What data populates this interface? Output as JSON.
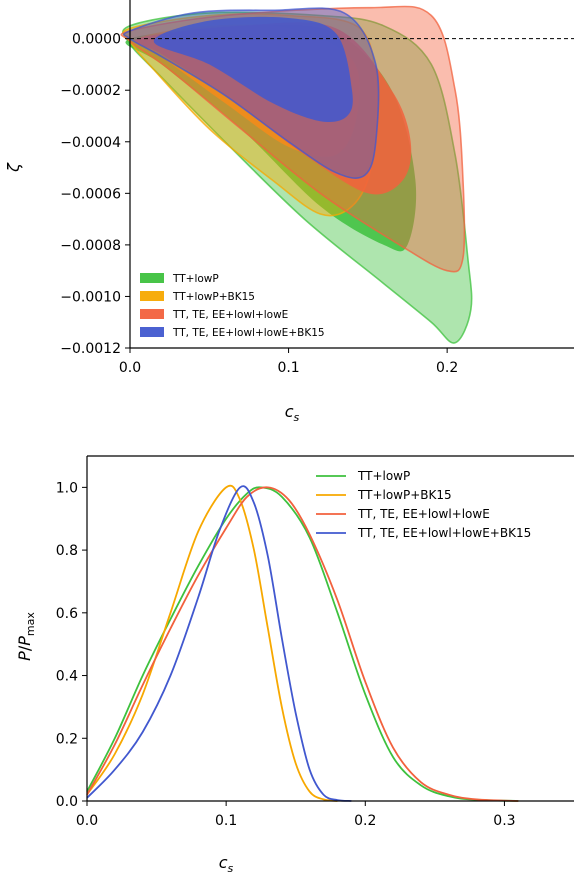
{
  "chart_data": [
    {
      "type": "contour",
      "xlabel": "c_s",
      "ylabel": "ζ",
      "xlim": [
        0.0,
        0.28
      ],
      "ylim": [
        -0.0012,
        0.00015
      ],
      "xticks": [
        0.0,
        0.1,
        0.2
      ],
      "xtick_labels": [
        "0.0",
        "0.1",
        "0.2"
      ],
      "yticks": [
        0.0,
        -0.0002,
        -0.0004,
        -0.0006,
        -0.0008,
        -0.001,
        -0.0012
      ],
      "ytick_labels": [
        "0.0000",
        "−0.0002",
        "−0.0004",
        "−0.0006",
        "−0.0008",
        "−0.0010",
        "−0.0012"
      ],
      "reference_line": {
        "y": 0.0,
        "style": "dashed"
      },
      "legend_position": "lower-left",
      "series": [
        {
          "name": "TT+lowP",
          "color": "#3ec13e",
          "outer": [
            [
              0.0,
              5e-05
            ],
            [
              0.05,
              0.0001
            ],
            [
              0.12,
              9e-05
            ],
            [
              0.16,
              5e-05
            ],
            [
              0.19,
              -0.0001
            ],
            [
              0.205,
              -0.00045
            ],
            [
              0.213,
              -0.00085
            ],
            [
              0.215,
              -0.00105
            ],
            [
              0.205,
              -0.00118
            ],
            [
              0.19,
              -0.0011
            ],
            [
              0.16,
              -0.00095
            ],
            [
              0.11,
              -0.0007
            ],
            [
              0.06,
              -0.0004
            ],
            [
              0.02,
              -0.00015
            ],
            [
              0.0,
              -2e-05
            ]
          ],
          "inner": [
            [
              0.0,
              0.0
            ],
            [
              0.08,
              5e-05
            ],
            [
              0.13,
              2e-05
            ],
            [
              0.165,
              -0.0002
            ],
            [
              0.18,
              -0.00055
            ],
            [
              0.175,
              -0.0008
            ],
            [
              0.16,
              -0.0008
            ],
            [
              0.12,
              -0.00065
            ],
            [
              0.07,
              -0.00035
            ],
            [
              0.02,
              -0.0001
            ]
          ]
        },
        {
          "name": "TT+lowP+BK15",
          "color": "#f7a800",
          "outer": [
            [
              0.0,
              4e-05
            ],
            [
              0.05,
              9e-05
            ],
            [
              0.1,
              9e-05
            ],
            [
              0.145,
              4e-05
            ],
            [
              0.155,
              -0.0002
            ],
            [
              0.152,
              -0.0005
            ],
            [
              0.14,
              -0.00065
            ],
            [
              0.12,
              -0.00068
            ],
            [
              0.09,
              -0.00055
            ],
            [
              0.05,
              -0.00035
            ],
            [
              0.015,
              -0.00012
            ],
            [
              0.0,
              -1e-05
            ]
          ],
          "inner": [
            [
              0.005,
              0.0
            ],
            [
              0.05,
              5e-05
            ],
            [
              0.1,
              4e-05
            ],
            [
              0.14,
              -8e-05
            ],
            [
              0.143,
              -0.0003
            ],
            [
              0.13,
              -0.00045
            ],
            [
              0.1,
              -0.00042
            ],
            [
              0.06,
              -0.00025
            ],
            [
              0.02,
              -7e-05
            ]
          ]
        },
        {
          "name": "TT, TE, EE+lowl+lowE",
          "color": "#f2613d",
          "outer": [
            [
              0.0,
              3e-05
            ],
            [
              0.06,
              9e-05
            ],
            [
              0.15,
              0.00012
            ],
            [
              0.19,
              9e-05
            ],
            [
              0.205,
              -0.0002
            ],
            [
              0.21,
              -0.00055
            ],
            [
              0.21,
              -0.00085
            ],
            [
              0.2,
              -0.0009
            ],
            [
              0.17,
              -0.0008
            ],
            [
              0.12,
              -0.0006
            ],
            [
              0.07,
              -0.00035
            ],
            [
              0.025,
              -0.00012
            ],
            [
              0.0,
              -1e-05
            ]
          ],
          "inner": [
            [
              0.005,
              0.0
            ],
            [
              0.07,
              5e-05
            ],
            [
              0.13,
              4e-05
            ],
            [
              0.165,
              -0.0002
            ],
            [
              0.177,
              -0.0004
            ],
            [
              0.172,
              -0.00055
            ],
            [
              0.15,
              -0.0006
            ],
            [
              0.11,
              -0.00045
            ],
            [
              0.06,
              -0.00022
            ],
            [
              0.02,
              -6e-05
            ]
          ]
        },
        {
          "name": "TT, TE, EE+lowl+lowE+BK15",
          "color": "#4158cf",
          "outer": [
            [
              0.0,
              3e-05
            ],
            [
              0.04,
              0.0001
            ],
            [
              0.09,
              0.00011
            ],
            [
              0.135,
              0.0001
            ],
            [
              0.155,
              -0.0001
            ],
            [
              0.155,
              -0.0004
            ],
            [
              0.148,
              -0.00053
            ],
            [
              0.13,
              -0.00052
            ],
            [
              0.1,
              -0.0004
            ],
            [
              0.06,
              -0.00022
            ],
            [
              0.02,
              -7e-05
            ],
            [
              0.0,
              0.0
            ]
          ],
          "inner": [
            [
              0.015,
              -1e-05
            ],
            [
              0.05,
              7e-05
            ],
            [
              0.1,
              8e-05
            ],
            [
              0.13,
              2e-05
            ],
            [
              0.14,
              -0.0002
            ],
            [
              0.137,
              -0.0003
            ],
            [
              0.12,
              -0.00032
            ],
            [
              0.09,
              -0.00025
            ],
            [
              0.05,
              -0.0001
            ]
          ]
        }
      ]
    },
    {
      "type": "line",
      "xlabel": "c_s",
      "ylabel": "P/P_max",
      "xlim": [
        0.0,
        0.35
      ],
      "ylim": [
        0.0,
        1.1
      ],
      "xticks": [
        0.0,
        0.1,
        0.2,
        0.3
      ],
      "xtick_labels": [
        "0.0",
        "0.1",
        "0.2",
        "0.3"
      ],
      "yticks": [
        0.0,
        0.2,
        0.4,
        0.6,
        0.8,
        1.0
      ],
      "ytick_labels": [
        "0.0",
        "0.2",
        "0.4",
        "0.6",
        "0.8",
        "1.0"
      ],
      "legend_position": "upper-right",
      "series": [
        {
          "name": "TT+lowP",
          "color": "#3ec13e",
          "points": [
            [
              0.0,
              0.03
            ],
            [
              0.02,
              0.2
            ],
            [
              0.04,
              0.4
            ],
            [
              0.06,
              0.58
            ],
            [
              0.08,
              0.75
            ],
            [
              0.1,
              0.9
            ],
            [
              0.115,
              0.98
            ],
            [
              0.125,
              1.0
            ],
            [
              0.14,
              0.97
            ],
            [
              0.16,
              0.84
            ],
            [
              0.18,
              0.6
            ],
            [
              0.2,
              0.34
            ],
            [
              0.22,
              0.14
            ],
            [
              0.24,
              0.05
            ],
            [
              0.26,
              0.015
            ],
            [
              0.28,
              0.004
            ],
            [
              0.31,
              0.0
            ]
          ]
        },
        {
          "name": "TT+lowP+BK15",
          "color": "#f7a800",
          "points": [
            [
              0.0,
              0.02
            ],
            [
              0.02,
              0.15
            ],
            [
              0.04,
              0.34
            ],
            [
              0.06,
              0.6
            ],
            [
              0.08,
              0.86
            ],
            [
              0.1,
              1.0
            ],
            [
              0.11,
              0.96
            ],
            [
              0.12,
              0.8
            ],
            [
              0.13,
              0.55
            ],
            [
              0.14,
              0.3
            ],
            [
              0.15,
              0.12
            ],
            [
              0.16,
              0.03
            ],
            [
              0.17,
              0.005
            ],
            [
              0.18,
              0.0
            ]
          ]
        },
        {
          "name": "TT, TE, EE+lowl+lowE",
          "color": "#f2613d",
          "points": [
            [
              0.0,
              0.02
            ],
            [
              0.02,
              0.18
            ],
            [
              0.04,
              0.37
            ],
            [
              0.06,
              0.55
            ],
            [
              0.08,
              0.72
            ],
            [
              0.1,
              0.87
            ],
            [
              0.115,
              0.97
            ],
            [
              0.13,
              1.0
            ],
            [
              0.145,
              0.96
            ],
            [
              0.16,
              0.85
            ],
            [
              0.18,
              0.64
            ],
            [
              0.2,
              0.38
            ],
            [
              0.22,
              0.17
            ],
            [
              0.24,
              0.06
            ],
            [
              0.26,
              0.02
            ],
            [
              0.28,
              0.005
            ],
            [
              0.31,
              0.0
            ]
          ]
        },
        {
          "name": "TT, TE, EE+lowl+lowE+BK15",
          "color": "#4158cf",
          "points": [
            [
              0.0,
              0.01
            ],
            [
              0.02,
              0.1
            ],
            [
              0.04,
              0.22
            ],
            [
              0.06,
              0.4
            ],
            [
              0.08,
              0.65
            ],
            [
              0.095,
              0.86
            ],
            [
              0.11,
              1.0
            ],
            [
              0.12,
              0.95
            ],
            [
              0.13,
              0.78
            ],
            [
              0.14,
              0.52
            ],
            [
              0.15,
              0.28
            ],
            [
              0.16,
              0.1
            ],
            [
              0.17,
              0.02
            ],
            [
              0.18,
              0.003
            ],
            [
              0.19,
              0.0
            ]
          ]
        }
      ]
    }
  ]
}
